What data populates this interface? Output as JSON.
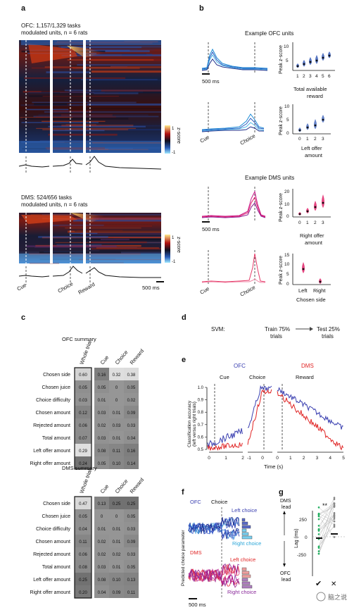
{
  "panel_letters": {
    "a": "a",
    "b": "b",
    "c": "c",
    "d": "d",
    "e": "e",
    "f": "f",
    "g": "g"
  },
  "panel_a": {
    "ofc_line1": "OFC: 1,157/1,329 tasks",
    "ofc_line2": "modulated units, n = 6 rats",
    "dms_line1": "DMS: 524/656 tasks",
    "dms_line2": "modulated units, n = 6 rats",
    "colorbar_top": "1",
    "colorbar_bottom": "-1",
    "colorbar_label": "z-score",
    "events": [
      "Cue",
      "Choice",
      "Reward"
    ],
    "scale_label": "500 ms"
  },
  "panel_b": {
    "ofc_title": "Example OFC units",
    "dms_title": "Example DMS units",
    "scale_label": "500 ms",
    "event_cue": "Cue",
    "event_choice": "Choice",
    "ylabel": "Peak z-score",
    "p1": {
      "ticks_x": [
        "1",
        "2",
        "3",
        "4",
        "5",
        "6"
      ],
      "xlabel_1": "Total available",
      "xlabel_2": "reward",
      "yticks": [
        "5",
        "10"
      ]
    },
    "p2": {
      "ticks_x": [
        "0",
        "1",
        "2",
        "3"
      ],
      "xlabel_1": "Left offer",
      "xlabel_2": "amount",
      "yticks": [
        "0",
        "5",
        "10"
      ]
    },
    "p3": {
      "ticks_x": [
        "0",
        "1",
        "2",
        "3"
      ],
      "xlabel_1": "Right offer",
      "xlabel_2": "amount",
      "yticks": [
        "0",
        "10",
        "20"
      ]
    },
    "p4": {
      "ticks_x": [
        "Left",
        "Right"
      ],
      "xlabel_1": "Chosen side",
      "yticks": [
        "0",
        "5",
        "10",
        "15"
      ]
    }
  },
  "panel_c": {
    "ofc_title": "OFC summary",
    "dms_title": "DMS summary",
    "col_whole": "Whole trial",
    "col_cue": "Cue",
    "col_choice": "Choice",
    "col_reward": "Reward",
    "rows": [
      "Chosen side",
      "Chosen juice",
      "Choice difficulty",
      "Chosen amount",
      "Rejected amount",
      "Total amount",
      "Left offer amount",
      "Right offer amount"
    ],
    "ofc_values": [
      [
        "0.60",
        "0.16",
        "0.32",
        "0.38"
      ],
      [
        "0.05",
        "0.05",
        "0",
        "0.05"
      ],
      [
        "0.03",
        "0.01",
        "0",
        "0.02"
      ],
      [
        "0.12",
        "0.03",
        "0.01",
        "0.09"
      ],
      [
        "0.06",
        "0.02",
        "0.03",
        "0.03"
      ],
      [
        "0.07",
        "0.03",
        "0.01",
        "0.04"
      ],
      [
        "0.29",
        "0.08",
        "0.11",
        "0.16"
      ],
      [
        "0.24",
        "0.05",
        "0.10",
        "0.14"
      ]
    ],
    "dms_values": [
      [
        "0.47",
        "0.13",
        "0.25",
        "0.25"
      ],
      [
        "0.05",
        "0",
        "0",
        "0.05"
      ],
      [
        "0.04",
        "0.01",
        "0.01",
        "0.03"
      ],
      [
        "0.11",
        "0.02",
        "0.01",
        "0.09"
      ],
      [
        "0.06",
        "0.02",
        "0.02",
        "0.03"
      ],
      [
        "0.08",
        "0.03",
        "0.01",
        "0.05"
      ],
      [
        "0.25",
        "0.08",
        "0.10",
        "0.13"
      ],
      [
        "0.20",
        "0.04",
        "0.09",
        "0.11"
      ]
    ]
  },
  "panel_d": {
    "svm": "SVM:",
    "train_1": "Train 75%",
    "train_2": "trials",
    "test_1": "Test 25%",
    "test_2": "trials"
  },
  "panel_e": {
    "ofc_label": "OFC",
    "dms_label": "DMS",
    "cue": "Cue",
    "choice": "Choice",
    "reward": "Reward",
    "ylabel_1": "Classification accuracy",
    "ylabel_2": "(left versus right trials)",
    "yticks": [
      "0.5",
      "0.6",
      "0.7",
      "0.8",
      "0.9",
      "1.0"
    ],
    "xticks_1": [
      "0",
      "1",
      "2"
    ],
    "xticks_2": [
      "-1",
      "0"
    ],
    "xticks_3": [
      "0",
      "1",
      "2",
      "3",
      "4",
      "5"
    ],
    "xlabel": "Time (s)",
    "ofc_color": "#3a3fb0",
    "dms_color": "#e02424"
  },
  "panel_f": {
    "ofc": "OFC",
    "dms": "DMS",
    "choice": "Choice",
    "left_choice": "Left choice",
    "right_choice": "Right choice",
    "ylabel": "Predicted choice parameter",
    "scale_label": "500 ms"
  },
  "panel_g": {
    "dms_lead_1": "DMS",
    "dms_lead_2": "lead",
    "ofc_lead_1": "OFC",
    "ofc_lead_2": "lead",
    "stars": "**",
    "ylabel": "Lag (ms)",
    "yticks": [
      "250",
      "0",
      "-250"
    ],
    "x_check": "✔",
    "x_cross": "✕"
  },
  "watermark": "脑之说"
}
